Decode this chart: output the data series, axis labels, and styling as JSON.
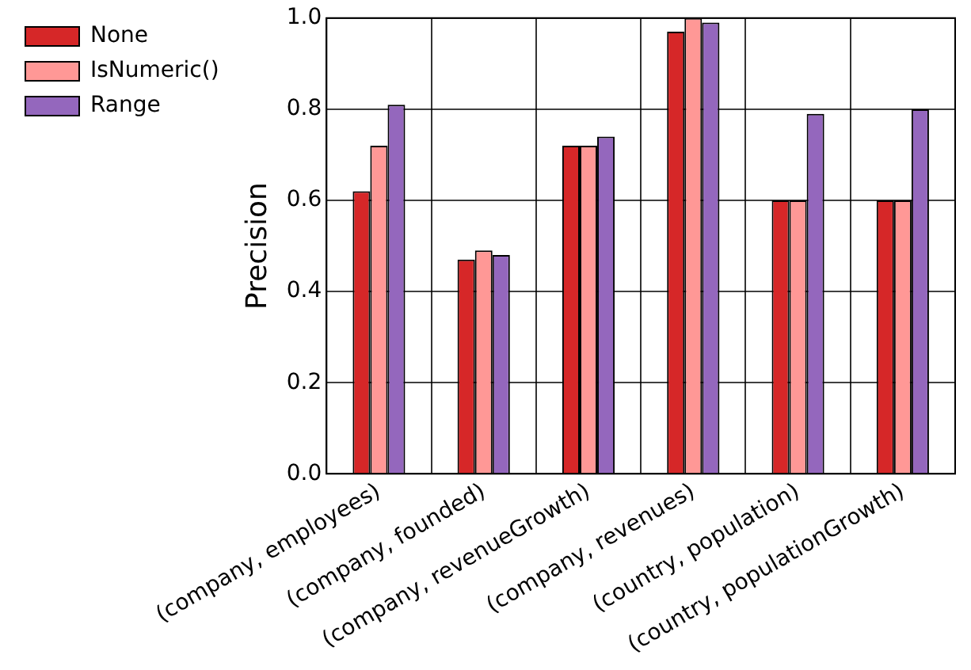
{
  "chart_data": {
    "type": "bar",
    "ylabel": "Precision",
    "categories": [
      "(company, employees)",
      "(company, founded)",
      "(company, revenueGrowth)",
      "(company, revenues)",
      "(country, population)",
      "(country, populationGrowth)"
    ],
    "series": [
      {
        "name": "None",
        "color": "#d62728",
        "values": [
          0.62,
          0.47,
          0.72,
          0.97,
          0.6,
          0.6
        ]
      },
      {
        "name": "IsNumeric()",
        "color": "#ff9896",
        "values": [
          0.72,
          0.49,
          0.72,
          1.0,
          0.6,
          0.6
        ]
      },
      {
        "name": "Range",
        "color": "#9467bd",
        "values": [
          0.81,
          0.48,
          0.74,
          0.99,
          0.79,
          0.8
        ]
      }
    ],
    "ylim": [
      0,
      1
    ],
    "yticks": [
      {
        "value": 0,
        "label": "0.0"
      },
      {
        "value": 0.2,
        "label": "0.2"
      },
      {
        "value": 0.4,
        "label": "0.4"
      },
      {
        "value": 0.6,
        "label": "0.6"
      },
      {
        "value": 0.8,
        "label": "0.8"
      },
      {
        "value": 1,
        "label": "1.0"
      }
    ],
    "grid": true,
    "legend": "top left"
  }
}
